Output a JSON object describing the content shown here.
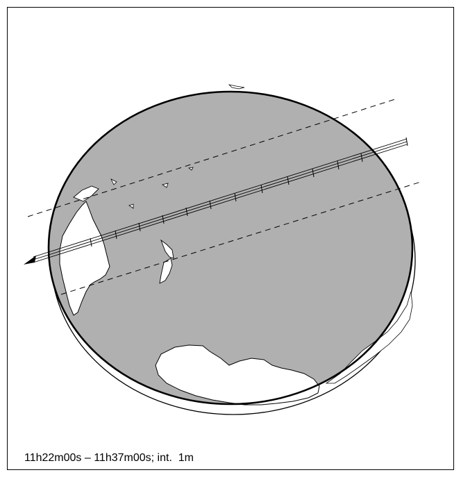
{
  "map": {
    "caption": "11h22m00s – 11h37m00s; int.  1m",
    "colors": {
      "globe_fill": "#b0b0b0",
      "land_fill": "#ffffff",
      "outline": "#000000",
      "background": "#ffffff"
    },
    "features": [
      "earth-globe",
      "eclipse-path-centerline",
      "northern-limit-dashed",
      "southern-limit-dashed",
      "australia",
      "new-zealand",
      "antarctica",
      "direction-arrow"
    ]
  }
}
